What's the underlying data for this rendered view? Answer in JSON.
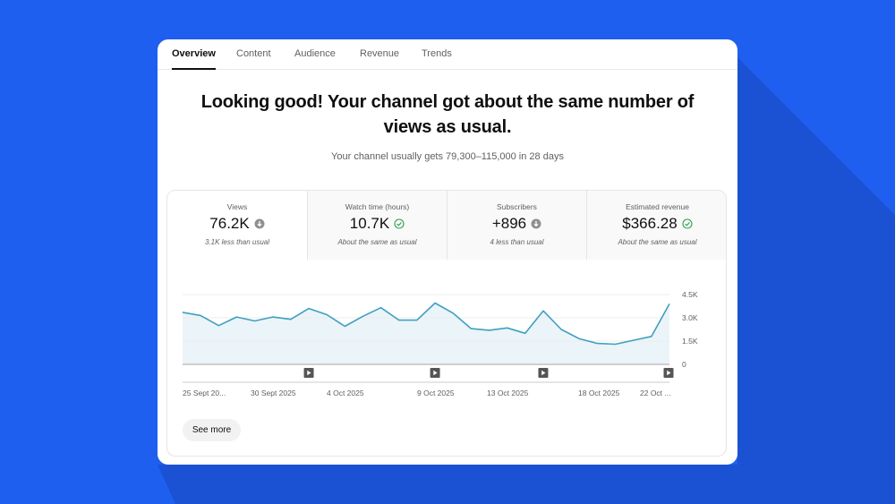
{
  "colors": {
    "background": "#1f5ff0",
    "shadow": "#1b52d4",
    "line": "#3ea0c0",
    "area": "#ebf4f8",
    "neutral_icon": "#909090",
    "check_icon": "#2e9e4f"
  },
  "tabs": [
    {
      "label": "Overview",
      "active": true
    },
    {
      "label": "Content",
      "active": false
    },
    {
      "label": "Audience",
      "active": false
    },
    {
      "label": "Revenue",
      "active": false
    },
    {
      "label": "Trends",
      "active": false
    }
  ],
  "headline": {
    "line1": "Looking good! Your channel got about the same number of",
    "line2": "views as usual."
  },
  "subline": "Your channel usually gets 79,300–115,000 in 28 days",
  "metrics": [
    {
      "label": "Views",
      "value": "76.2K",
      "icon": "arrow-down-circle-icon",
      "note": "3.1K less than usual",
      "active": true
    },
    {
      "label": "Watch time (hours)",
      "value": "10.7K",
      "icon": "check-circle-icon",
      "note": "About the same as usual",
      "active": false
    },
    {
      "label": "Subscribers",
      "value": "+896",
      "icon": "arrow-down-circle-icon",
      "note": "4 less than usual",
      "active": false
    },
    {
      "label": "Estimated revenue",
      "value": "$366.28",
      "icon": "check-circle-icon",
      "note": "About the same as usual",
      "active": false
    }
  ],
  "chart_data": {
    "type": "area",
    "title": "Views",
    "xlabel": "",
    "ylabel": "",
    "ylim": [
      0,
      4500
    ],
    "y_ticks": [
      "4.5K",
      "3.0K",
      "1.5K",
      "0"
    ],
    "x_tick_labels": [
      "25 Sept 20...",
      "30 Sept 2025",
      "4 Oct 2025",
      "9 Oct 2025",
      "13 Oct 2025",
      "18 Oct 2025",
      "22 Oct ..."
    ],
    "x": [
      "Sep 25",
      "Sep 26",
      "Sep 27",
      "Sep 28",
      "Sep 29",
      "Sep 30",
      "Oct 1",
      "Oct 2",
      "Oct 3",
      "Oct 4",
      "Oct 5",
      "Oct 6",
      "Oct 7",
      "Oct 8",
      "Oct 9",
      "Oct 10",
      "Oct 11",
      "Oct 12",
      "Oct 13",
      "Oct 14",
      "Oct 15",
      "Oct 16",
      "Oct 17",
      "Oct 18",
      "Oct 19",
      "Oct 20",
      "Oct 21",
      "Oct 22"
    ],
    "series": [
      {
        "name": "Views",
        "values": [
          3350,
          3150,
          2500,
          3050,
          2800,
          3050,
          2900,
          3600,
          3200,
          2450,
          3100,
          3650,
          2850,
          2850,
          3950,
          3300,
          2300,
          2200,
          2350,
          2000,
          3450,
          2250,
          1650,
          1350,
          1300,
          1550,
          1800,
          3900
        ]
      }
    ],
    "video_markers_at_index": [
      7,
      14,
      20,
      27
    ],
    "grid": true,
    "legend": "none"
  },
  "see_more_label": "See more"
}
